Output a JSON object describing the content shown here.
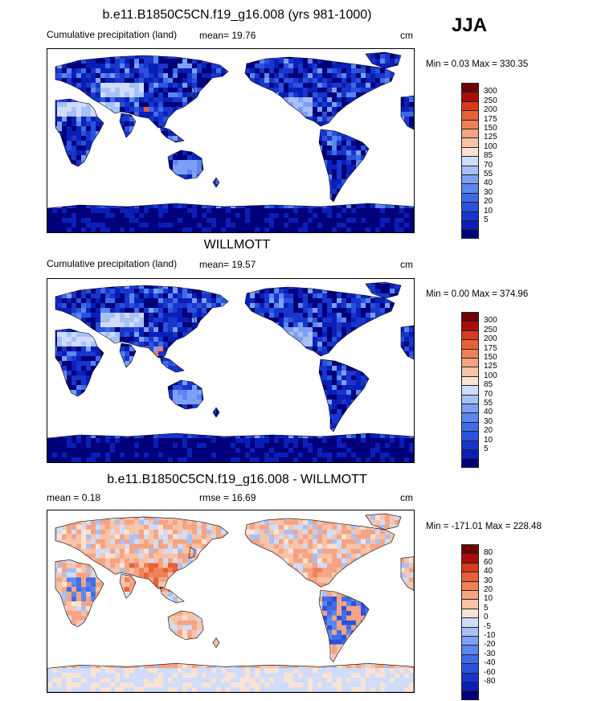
{
  "season_label": "JJA",
  "colors": {
    "precip_scale": [
      "#00007a",
      "#0a1fb8",
      "#1836cc",
      "#2a52dd",
      "#3f6ce6",
      "#5a86ee",
      "#7ca0f4",
      "#a6c0f8",
      "#cfdcfb",
      "#fbe3d2",
      "#f8c3a8",
      "#f5a382",
      "#f0805a",
      "#e85f38",
      "#d63c1c",
      "#a80e0a",
      "#6e0000"
    ],
    "diff_scale": [
      "#00007a",
      "#0a1fb8",
      "#1836cc",
      "#2a52dd",
      "#3f6ce6",
      "#5a86ee",
      "#7ca0f4",
      "#a6c0f8",
      "#cfdcfb",
      "#fbe3d2",
      "#f8c3a8",
      "#f5a382",
      "#f0805a",
      "#e85f38",
      "#d63c1c",
      "#a80e0a",
      "#6e0000"
    ]
  },
  "panels": [
    {
      "title": "b.e11.B1850C5CN.f19_g16.008 (yrs 981-1000)",
      "left_label": "Cumulative precipitation (land)",
      "stat_label": "mean=  19.76",
      "unit": "cm",
      "minmax": "Min =   0.03 Max = 330.35",
      "colorbar_ticks": [
        "300",
        "250",
        "200",
        "175",
        "150",
        "125",
        "100",
        "85",
        "70",
        "55",
        "40",
        "30",
        "20",
        "10",
        "5"
      ],
      "style": "model"
    },
    {
      "title": "WILLMOTT",
      "left_label": "Cumulative precipitation (land)",
      "stat_label": "mean=  19.57",
      "unit": "cm",
      "minmax": "Min =   0.00 Max = 374.96",
      "colorbar_ticks": [
        "300",
        "250",
        "200",
        "175",
        "150",
        "125",
        "100",
        "85",
        "70",
        "55",
        "40",
        "30",
        "20",
        "10",
        "5"
      ],
      "style": "obs"
    },
    {
      "title": "b.e11.B1850C5CN.f19_g16.008 - WILLMOTT",
      "left_label": "mean =   0.18",
      "stat_label": "rmse =  16.69",
      "unit": "cm",
      "minmax": "Min = -171.01 Max = 228.48",
      "colorbar_ticks": [
        "80",
        "60",
        "40",
        "30",
        "20",
        "10",
        "5",
        "0",
        "-5",
        "-10",
        "-20",
        "-30",
        "-40",
        "-60",
        "-80"
      ],
      "style": "diff"
    }
  ]
}
